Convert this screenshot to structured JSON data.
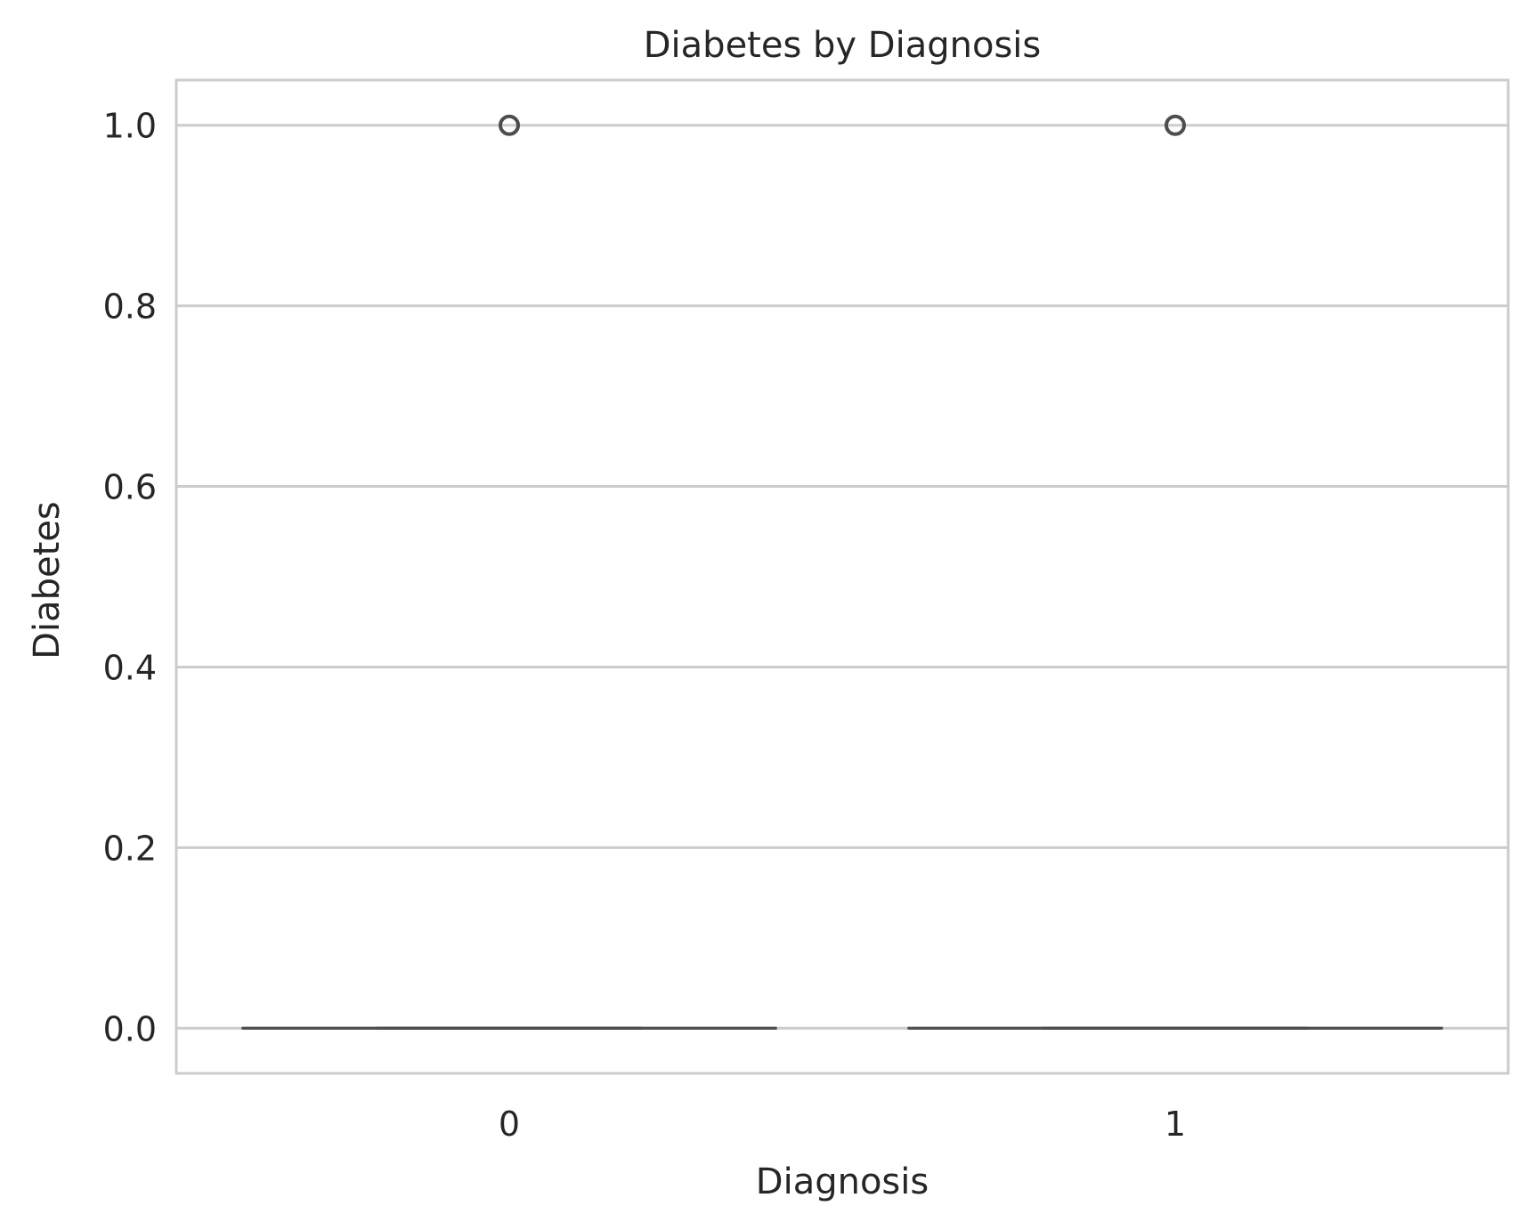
{
  "chart_data": {
    "type": "box",
    "title": "Diabetes by Diagnosis",
    "xlabel": "Diagnosis",
    "ylabel": "Diabetes",
    "categories": [
      "0",
      "1"
    ],
    "ylim": [
      -0.05,
      1.05
    ],
    "yticks": [
      0.0,
      0.2,
      0.4,
      0.6,
      0.8,
      1.0
    ],
    "ytick_labels": [
      "0.0",
      "0.2",
      "0.4",
      "0.6",
      "0.8",
      "1.0"
    ],
    "grid": true,
    "boxes": [
      {
        "category": "0",
        "min": 0.0,
        "q1": 0.0,
        "median": 0.0,
        "q3": 0.0,
        "max": 0.0,
        "outliers": [
          1.0
        ]
      },
      {
        "category": "1",
        "min": 0.0,
        "q1": 0.0,
        "median": 0.0,
        "q3": 0.0,
        "max": 0.0,
        "outliers": [
          1.0
        ]
      }
    ],
    "colors": {
      "grid": "#cccccc",
      "spine": "#cccccc",
      "box_line": "#4d4d4d",
      "outlier": "#4d4d4d",
      "text": "#262626"
    }
  }
}
